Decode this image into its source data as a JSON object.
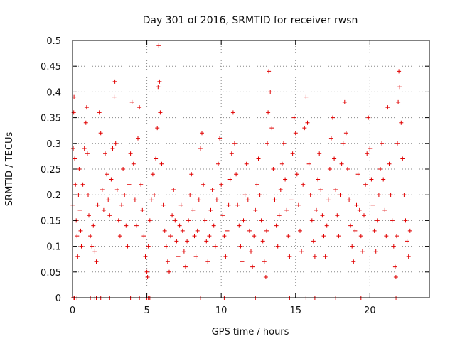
{
  "chart_data": {
    "type": "scatter",
    "title": "Day 301 of 2016, SRMTID for receiver rwsn",
    "xlabel": "GPS time / hours",
    "ylabel": "SRMTID / TECUs",
    "xlim": [
      0,
      24
    ],
    "ylim": [
      0,
      0.5
    ],
    "grid": true,
    "marker": "plus",
    "color": "#e00000",
    "x_ticks": [
      0,
      5,
      10,
      15,
      20
    ],
    "x_tick_labels": [
      "0",
      "5",
      "10",
      "15",
      "20"
    ],
    "y_ticks": [
      0,
      0.05,
      0.1,
      0.15,
      0.2,
      0.25,
      0.3,
      0.35,
      0.4,
      0.45,
      0.5
    ],
    "y_tick_labels": [
      "0",
      "0.05",
      "0.1",
      "0.15",
      "0.2",
      "0.25",
      "0.3",
      "0.35",
      "0.4",
      "0.45",
      "0.5"
    ],
    "series": [
      {
        "name": "SRMTID",
        "points": [
          [
            0.02,
            0.18
          ],
          [
            0.05,
            0.29
          ],
          [
            0.08,
            0.36
          ],
          [
            0.1,
            0.39
          ],
          [
            0.15,
            0.27
          ],
          [
            0.2,
            0.22
          ],
          [
            0.25,
            0.15
          ],
          [
            0.3,
            0.12
          ],
          [
            0.35,
            0.08
          ],
          [
            0.4,
            0.2
          ],
          [
            0.45,
            0.25
          ],
          [
            0.5,
            0.17
          ],
          [
            0.55,
            0.13
          ],
          [
            0.6,
            0.1
          ],
          [
            0.7,
            0.22
          ],
          [
            0.8,
            0.29
          ],
          [
            0.9,
            0.34
          ],
          [
            0.95,
            0.37
          ],
          [
            1.0,
            0.28
          ],
          [
            1.05,
            0.2
          ],
          [
            1.1,
            0.16
          ],
          [
            1.2,
            0.12
          ],
          [
            1.3,
            0.1
          ],
          [
            1.4,
            0.14
          ],
          [
            1.5,
            0.09
          ],
          [
            1.6,
            0.07
          ],
          [
            1.7,
            0.18
          ],
          [
            1.8,
            0.36
          ],
          [
            1.9,
            0.32
          ],
          [
            2.0,
            0.21
          ],
          [
            2.1,
            0.17
          ],
          [
            2.2,
            0.28
          ],
          [
            2.3,
            0.24
          ],
          [
            2.4,
            0.19
          ],
          [
            2.5,
            0.16
          ],
          [
            2.6,
            0.23
          ],
          [
            2.7,
            0.29
          ],
          [
            2.8,
            0.39
          ],
          [
            2.85,
            0.42
          ],
          [
            2.9,
            0.3
          ],
          [
            3.0,
            0.21
          ],
          [
            3.1,
            0.15
          ],
          [
            3.2,
            0.12
          ],
          [
            3.3,
            0.18
          ],
          [
            3.4,
            0.25
          ],
          [
            3.5,
            0.2
          ],
          [
            3.6,
            0.14
          ],
          [
            3.7,
            0.1
          ],
          [
            3.8,
            0.22
          ],
          [
            3.9,
            0.28
          ],
          [
            4.0,
            0.38
          ],
          [
            4.1,
            0.26
          ],
          [
            4.2,
            0.19
          ],
          [
            4.3,
            0.14
          ],
          [
            4.4,
            0.31
          ],
          [
            4.5,
            0.37
          ],
          [
            4.6,
            0.22
          ],
          [
            4.7,
            0.17
          ],
          [
            4.8,
            0.12
          ],
          [
            4.9,
            0.08
          ],
          [
            5.0,
            0.05
          ],
          [
            5.05,
            0.04
          ],
          [
            5.1,
            0.1
          ],
          [
            5.2,
            0.15
          ],
          [
            5.3,
            0.19
          ],
          [
            5.4,
            0.24
          ],
          [
            5.5,
            0.2
          ],
          [
            5.6,
            0.27
          ],
          [
            5.7,
            0.33
          ],
          [
            5.75,
            0.41
          ],
          [
            5.8,
            0.49
          ],
          [
            5.85,
            0.42
          ],
          [
            5.9,
            0.36
          ],
          [
            6.0,
            0.26
          ],
          [
            6.1,
            0.18
          ],
          [
            6.2,
            0.13
          ],
          [
            6.3,
            0.1
          ],
          [
            6.4,
            0.07
          ],
          [
            6.5,
            0.05
          ],
          [
            6.6,
            0.12
          ],
          [
            6.7,
            0.16
          ],
          [
            6.8,
            0.21
          ],
          [
            6.9,
            0.15
          ],
          [
            7.0,
            0.11
          ],
          [
            7.1,
            0.08
          ],
          [
            7.2,
            0.14
          ],
          [
            7.3,
            0.18
          ],
          [
            7.4,
            0.13
          ],
          [
            7.5,
            0.09
          ],
          [
            7.6,
            0.06
          ],
          [
            7.7,
            0.11
          ],
          [
            7.8,
            0.15
          ],
          [
            7.9,
            0.2
          ],
          [
            8.0,
            0.24
          ],
          [
            8.1,
            0.17
          ],
          [
            8.2,
            0.12
          ],
          [
            8.3,
            0.08
          ],
          [
            8.4,
            0.13
          ],
          [
            8.5,
            0.19
          ],
          [
            8.6,
            0.29
          ],
          [
            8.7,
            0.32
          ],
          [
            8.8,
            0.22
          ],
          [
            8.9,
            0.15
          ],
          [
            9.0,
            0.11
          ],
          [
            9.1,
            0.07
          ],
          [
            9.2,
            0.12
          ],
          [
            9.3,
            0.17
          ],
          [
            9.4,
            0.21
          ],
          [
            9.5,
            0.14
          ],
          [
            9.6,
            0.1
          ],
          [
            9.7,
            0.19
          ],
          [
            9.8,
            0.26
          ],
          [
            9.9,
            0.31
          ],
          [
            10.0,
            0.22
          ],
          [
            10.1,
            0.16
          ],
          [
            10.2,
            0.12
          ],
          [
            10.3,
            0.08
          ],
          [
            10.4,
            0.13
          ],
          [
            10.5,
            0.18
          ],
          [
            10.6,
            0.23
          ],
          [
            10.7,
            0.28
          ],
          [
            10.8,
            0.36
          ],
          [
            10.9,
            0.3
          ],
          [
            11.0,
            0.24
          ],
          [
            11.1,
            0.18
          ],
          [
            11.2,
            0.14
          ],
          [
            11.3,
            0.1
          ],
          [
            11.4,
            0.07
          ],
          [
            11.5,
            0.15
          ],
          [
            11.6,
            0.2
          ],
          [
            11.7,
            0.26
          ],
          [
            11.8,
            0.19
          ],
          [
            11.9,
            0.13
          ],
          [
            12.0,
            0.09
          ],
          [
            12.1,
            0.06
          ],
          [
            12.2,
            0.12
          ],
          [
            12.3,
            0.17
          ],
          [
            12.4,
            0.22
          ],
          [
            12.5,
            0.27
          ],
          [
            12.6,
            0.2
          ],
          [
            12.7,
            0.15
          ],
          [
            12.8,
            0.11
          ],
          [
            12.9,
            0.07
          ],
          [
            13.0,
            0.04
          ],
          [
            13.05,
            0.13
          ],
          [
            13.1,
            0.3
          ],
          [
            13.15,
            0.36
          ],
          [
            13.2,
            0.44
          ],
          [
            13.3,
            0.4
          ],
          [
            13.4,
            0.33
          ],
          [
            13.5,
            0.25
          ],
          [
            13.6,
            0.19
          ],
          [
            13.7,
            0.14
          ],
          [
            13.8,
            0.1
          ],
          [
            13.9,
            0.16
          ],
          [
            14.0,
            0.21
          ],
          [
            14.1,
            0.26
          ],
          [
            14.2,
            0.3
          ],
          [
            14.3,
            0.23
          ],
          [
            14.4,
            0.17
          ],
          [
            14.5,
            0.12
          ],
          [
            14.6,
            0.08
          ],
          [
            14.7,
            0.19
          ],
          [
            14.8,
            0.28
          ],
          [
            14.9,
            0.35
          ],
          [
            15.0,
            0.32
          ],
          [
            15.1,
            0.24
          ],
          [
            15.2,
            0.18
          ],
          [
            15.3,
            0.13
          ],
          [
            15.4,
            0.09
          ],
          [
            15.5,
            0.22
          ],
          [
            15.6,
            0.33
          ],
          [
            15.7,
            0.39
          ],
          [
            15.8,
            0.34
          ],
          [
            15.9,
            0.26
          ],
          [
            16.0,
            0.2
          ],
          [
            16.1,
            0.15
          ],
          [
            16.2,
            0.11
          ],
          [
            16.3,
            0.08
          ],
          [
            16.4,
            0.17
          ],
          [
            16.5,
            0.23
          ],
          [
            16.6,
            0.28
          ],
          [
            16.7,
            0.21
          ],
          [
            16.8,
            0.16
          ],
          [
            16.9,
            0.12
          ],
          [
            17.0,
            0.08
          ],
          [
            17.1,
            0.14
          ],
          [
            17.2,
            0.19
          ],
          [
            17.3,
            0.25
          ],
          [
            17.4,
            0.31
          ],
          [
            17.5,
            0.35
          ],
          [
            17.6,
            0.27
          ],
          [
            17.7,
            0.21
          ],
          [
            17.8,
            0.16
          ],
          [
            17.9,
            0.12
          ],
          [
            18.0,
            0.2
          ],
          [
            18.1,
            0.26
          ],
          [
            18.2,
            0.3
          ],
          [
            18.3,
            0.38
          ],
          [
            18.4,
            0.32
          ],
          [
            18.5,
            0.25
          ],
          [
            18.6,
            0.19
          ],
          [
            18.7,
            0.14
          ],
          [
            18.8,
            0.1
          ],
          [
            18.9,
            0.07
          ],
          [
            19.0,
            0.13
          ],
          [
            19.1,
            0.18
          ],
          [
            19.2,
            0.24
          ],
          [
            19.3,
            0.17
          ],
          [
            19.4,
            0.12
          ],
          [
            19.5,
            0.09
          ],
          [
            19.6,
            0.16
          ],
          [
            19.7,
            0.22
          ],
          [
            19.8,
            0.28
          ],
          [
            19.9,
            0.35
          ],
          [
            20.0,
            0.29
          ],
          [
            20.1,
            0.23
          ],
          [
            20.2,
            0.18
          ],
          [
            20.3,
            0.13
          ],
          [
            20.4,
            0.09
          ],
          [
            20.5,
            0.15
          ],
          [
            20.6,
            0.2
          ],
          [
            20.7,
            0.25
          ],
          [
            20.8,
            0.3
          ],
          [
            20.9,
            0.23
          ],
          [
            21.0,
            0.17
          ],
          [
            21.1,
            0.12
          ],
          [
            21.2,
            0.37
          ],
          [
            21.3,
            0.26
          ],
          [
            21.4,
            0.2
          ],
          [
            21.5,
            0.15
          ],
          [
            21.6,
            0.1
          ],
          [
            21.7,
            0.06
          ],
          [
            21.75,
            0.04
          ],
          [
            21.8,
            0.12
          ],
          [
            21.85,
            0.3
          ],
          [
            21.9,
            0.38
          ],
          [
            21.95,
            0.44
          ],
          [
            22.0,
            0.41
          ],
          [
            22.1,
            0.34
          ],
          [
            22.2,
            0.27
          ],
          [
            22.3,
            0.2
          ],
          [
            22.4,
            0.15
          ],
          [
            22.5,
            0.11
          ],
          [
            22.6,
            0.08
          ],
          [
            22.7,
            0.13
          ]
        ]
      }
    ],
    "zero_points_x": [
      0.05,
      0.12,
      0.3,
      1.2,
      1.5,
      1.6,
      1.9,
      2.5,
      3.9,
      4.5,
      5.0,
      5.1,
      5.2,
      8.6,
      10.2,
      12.3,
      14.6,
      15.7,
      16.3,
      17.7,
      19.4,
      21.7,
      21.8
    ]
  }
}
